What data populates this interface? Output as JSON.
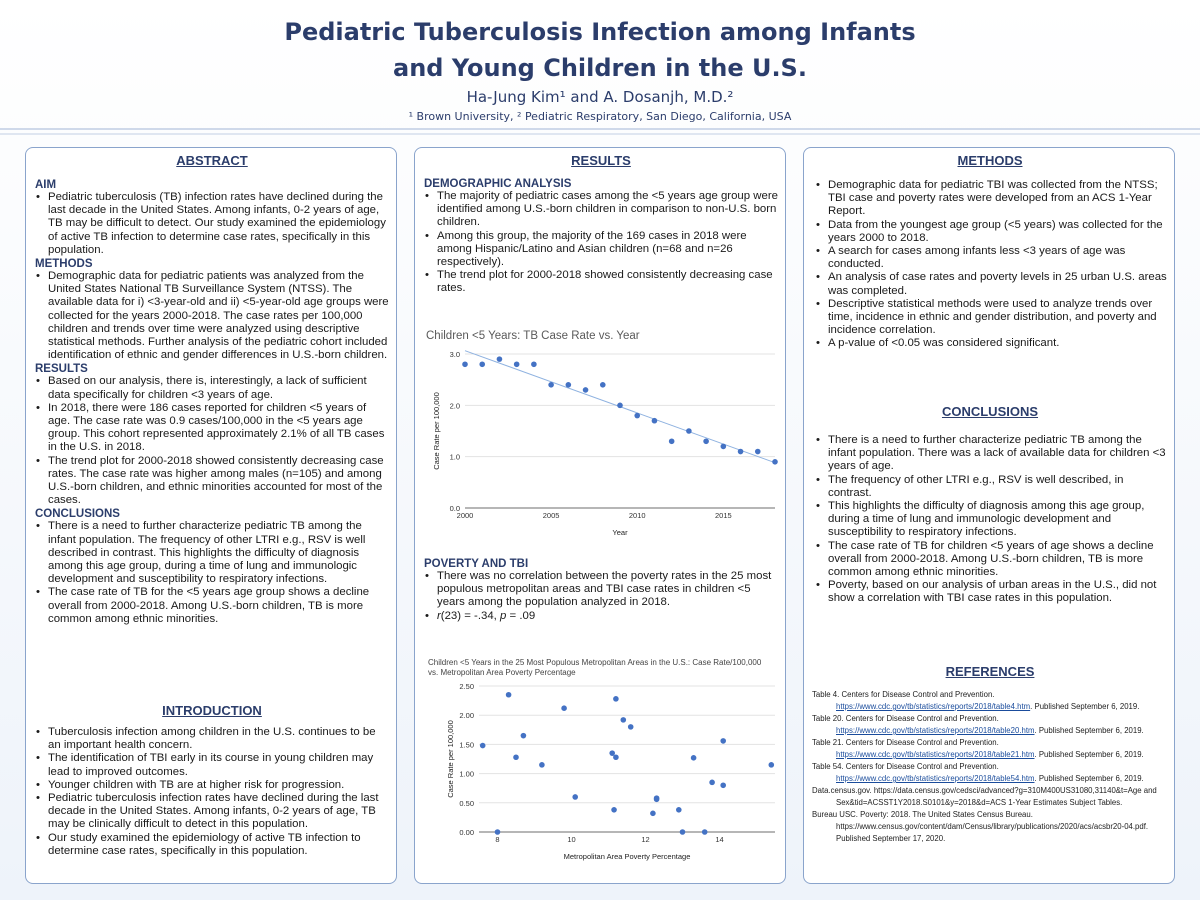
{
  "header": {
    "title_line1": "Pediatric Tuberculosis Infection among Infants",
    "title_line2": "and Young Children in the U.S.",
    "authors": "Ha-Jung Kim¹ and A. Dosanjh, M.D.²",
    "affiliations": "¹ Brown University, ² Pediatric Respiratory, San Diego, California, USA"
  },
  "abstract": {
    "title": "ABSTRACT",
    "aim_heading": "AIM",
    "aim_items": [
      "Pediatric tuberculosis (TB) infection rates have declined during the last decade in the United States. Among infants, 0-2 years of age, TB may be difficult to detect. Our study examined the epidemiology of active TB infection to determine case rates, specifically in this population."
    ],
    "methods_heading": "METHODS",
    "methods_items": [
      "Demographic data for pediatric patients was analyzed from the United States National TB Surveillance System (NTSS). The available data for i) <3-year-old and ii) <5-year-old age groups were collected for the years 2000-2018. The case rates per 100,000 children and trends over time were analyzed using descriptive statistical methods. Further analysis of the pediatric cohort included identification of ethnic and gender differences in U.S.-born children."
    ],
    "results_heading": "RESULTS",
    "results_items": [
      "Based on our analysis, there is, interestingly, a lack of sufficient data specifically for children <3 years of age.",
      "In 2018, there were 186 cases reported for children <5 years of age. The case rate was 0.9 cases/100,000 in the <5 years age group. This cohort represented approximately 2.1% of all TB cases in the U.S. in 2018.",
      "The trend plot for 2000-2018 showed consistently decreasing case rates. The case rate was higher among males (n=105) and among U.S.-born children, and ethnic minorities accounted for most of the cases."
    ],
    "conclusions_heading": "CONCLUSIONS",
    "conclusions_items": [
      "There is a need to further characterize pediatric TB among the infant population. The frequency of other LTRI e.g., RSV is well described in contrast. This highlights the difficulty of diagnosis among this age group, during a time of lung and immunologic development and susceptibility to respiratory infections.",
      "The case rate of TB for the <5 years age group shows a decline overall from 2000-2018. Among U.S.-born children, TB is more common among ethnic minorities."
    ]
  },
  "introduction": {
    "title": "INTRODUCTION",
    "items": [
      "Tuberculosis infection among children in the U.S. continues to be an important health concern.",
      "The identification of TBI early in its course in young children may lead to improved outcomes.",
      "Younger children with TB are at higher risk for progression.",
      "Pediatric tuberculosis infection rates have declined during the last decade in the United States. Among infants, 0-2 years of age, TB may be clinically difficult to detect in this population.",
      "Our study examined the epidemiology of active TB infection to determine case rates, specifically in this population."
    ]
  },
  "results": {
    "title": "RESULTS",
    "demo_heading": "DEMOGRAPHIC ANALYSIS",
    "demo_items": [
      "The majority of pediatric cases among the <5 years age group were identified among U.S.-born children in comparison to non-U.S. born children.",
      "Among this group, the majority of the 169 cases in 2018 were among Hispanic/Latino and Asian children (n=68 and n=26 respectively).",
      "The trend plot for 2000-2018 showed consistently decreasing case rates."
    ],
    "poverty_heading": "POVERTY AND TBI",
    "poverty_items": [
      "There was no correlation between the poverty rates in the 25 most populous metropolitan areas and TBI case rates in children <5 years among the population analyzed in 2018."
    ],
    "stat_r": "r",
    "stat_mid": "(23) = -.34, ",
    "stat_p": "p",
    "stat_end": " = .09"
  },
  "chart_data": [
    {
      "type": "scatter",
      "title": "Children <5 Years: TB Case Rate vs. Year",
      "xlabel": "Year",
      "ylabel": "Case Rate per 100,000",
      "xlim": [
        2000,
        2018
      ],
      "ylim": [
        0,
        3
      ],
      "x_ticks": [
        "2000",
        "2005",
        "2010",
        "2015"
      ],
      "y_ticks": [
        "0.0",
        "1.0",
        "2.0",
        "3.0"
      ],
      "trendline": true,
      "x": [
        2000,
        2001,
        2002,
        2003,
        2004,
        2005,
        2006,
        2007,
        2008,
        2009,
        2010,
        2011,
        2012,
        2013,
        2014,
        2015,
        2016,
        2017,
        2018
      ],
      "y": [
        2.8,
        2.8,
        2.9,
        2.8,
        2.8,
        2.4,
        2.4,
        2.3,
        2.4,
        2.0,
        1.8,
        1.7,
        1.3,
        1.5,
        1.3,
        1.2,
        1.1,
        1.1,
        0.9
      ],
      "color": "#4472c4"
    },
    {
      "type": "scatter",
      "title": "Children <5 Years in the 25 Most Populous Metropolitan Areas in the U.S.: Case Rate/100,000 vs. Metropolitan Area Poverty Percentage",
      "xlabel": "Metropolitan Area Poverty Percentage",
      "ylabel": "Case Rate per 100,000",
      "xlim": [
        7.5,
        15.5
      ],
      "ylim": [
        0,
        2.5
      ],
      "x_ticks": [
        "8",
        "10",
        "12",
        "14"
      ],
      "y_ticks": [
        "0.00",
        "0.50",
        "1.00",
        "1.50",
        "2.00",
        "2.50"
      ],
      "x": [
        7.6,
        8.0,
        8.3,
        8.5,
        8.7,
        9.2,
        9.8,
        10.1,
        11.1,
        11.2,
        11.2,
        11.15,
        11.4,
        11.6,
        12.2,
        12.3,
        12.3,
        12.9,
        13.0,
        13.3,
        13.6,
        13.8,
        14.1,
        14.1,
        15.4
      ],
      "y": [
        1.48,
        0.0,
        2.35,
        1.28,
        1.65,
        1.15,
        2.12,
        0.6,
        1.35,
        2.28,
        1.28,
        0.38,
        1.92,
        1.8,
        0.32,
        0.58,
        0.56,
        0.38,
        0.0,
        1.27,
        0.0,
        0.85,
        1.56,
        0.8,
        1.15
      ],
      "color": "#4472c4"
    }
  ],
  "methods": {
    "title": "METHODS",
    "items": [
      "Demographic data for pediatric TBI was collected from the NTSS; TBI case and poverty rates were developed from an ACS 1-Year Report.",
      "Data from the youngest age group (<5 years) was collected for the years 2000 to 2018.",
      "A search for cases among infants less <3 years of age was conducted.",
      "An analysis of case rates and poverty levels in 25 urban U.S. areas was completed.",
      "Descriptive statistical methods were used to analyze trends over time, incidence in ethnic and gender distribution, and poverty and incidence correlation.",
      "A p-value of <0.05 was considered significant."
    ]
  },
  "conclusions": {
    "title": "CONCLUSIONS",
    "items": [
      "There is a need to further characterize pediatric TB among the infant population. There was a lack of available data for children <3 years of age.",
      "The frequency of other LTRI e.g., RSV is well described, in contrast.",
      "This highlights the difficulty of diagnosis among this age group, during a time of lung and immunologic development and susceptibility to respiratory infections.",
      "The case rate of TB for children <5 years of age shows a decline overall from 2000-2018. Among U.S.-born children, TB is more common among ethnic minorities.",
      "Poverty, based on our analysis of urban areas in the U.S., did not show a correlation with TBI case rates in this population."
    ]
  },
  "references": {
    "title": "REFERENCES",
    "r1_a": "Table 4. Centers for Disease Control and Prevention.",
    "r1_url": "https://www.cdc.gov/tb/statistics/reports/2018/table4.htm",
    "r1_b": ". Published September 6, 2019.",
    "r2_a": "Table 20. Centers for Disease Control and Prevention.",
    "r2_url": "https://www.cdc.gov/tb/statistics/reports/2018/table20.htm",
    "r2_b": ". Published September 6, 2019.",
    "r3_a": "Table 21. Centers for Disease Control and Prevention.",
    "r3_url": "https://www.cdc.gov/tb/statistics/reports/2018/table21.htm",
    "r3_b": ". Published September 6, 2019.",
    "r4_a": "Table 54. Centers for Disease Control and Prevention.",
    "r4_url": "https://www.cdc.gov/tb/statistics/reports/2018/table54.htm",
    "r4_b": ". Published September 6, 2019.",
    "r5": "Data.census.gov. https://data.census.gov/cedsci/advanced?g=310M400US31080,31140&t=Age and Sex&tid=ACSST1Y2018.S0101&y=2018&d=ACS 1-Year Estimates Subject Tables.",
    "r6": "Bureau USC. Poverty: 2018. The United States Census Bureau. https://www.census.gov/content/dam/Census/library/publications/2020/acs/acsbr20-04.pdf. Published September 17, 2020."
  }
}
